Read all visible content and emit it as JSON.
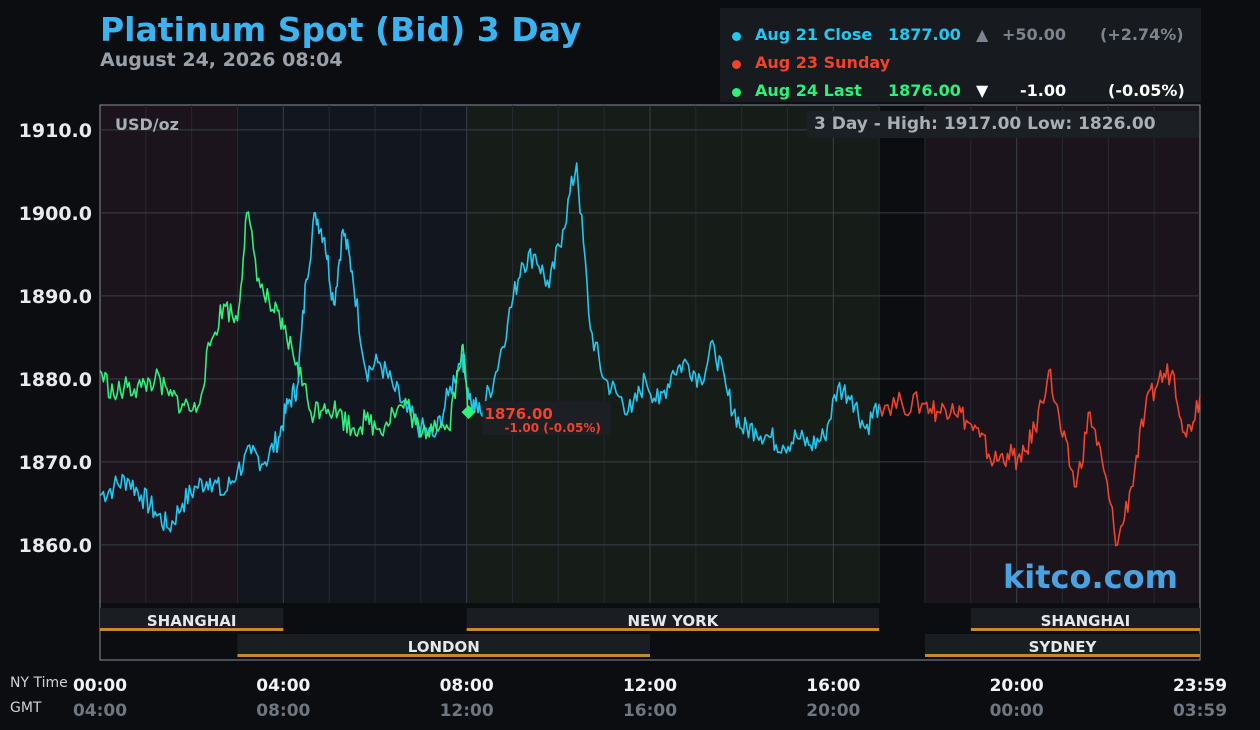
{
  "title": "Platinum Spot (Bid) 3 Day",
  "subtitle": "August 24, 2026 08:04",
  "legend": {
    "close": {
      "label": "Aug 21 Close",
      "price": "1877.00",
      "arrow": "▲",
      "change": "+50.00",
      "pct": "(+2.74%)",
      "color": "#22c8f0"
    },
    "sunday": {
      "label": "Aug 23 Sunday",
      "color": "#f0432c"
    },
    "last": {
      "label": "Aug 24 Last",
      "price": "1876.00",
      "arrow": "▼",
      "change": "-1.00",
      "pct": "(-0.05%)",
      "color": "#2ef07a"
    }
  },
  "unit_label": "USD/oz",
  "hilo": "3 Day - High: 1917.00  Low: 1826.00",
  "brand": "kitco.com",
  "current_marker": {
    "price": "1876.00",
    "change": "-1.00 (-0.05%)"
  },
  "axis": {
    "ny_label": "NY Time",
    "gmt_label": "GMT",
    "ny_ticks": [
      "00:00",
      "04:00",
      "08:00",
      "12:00",
      "16:00",
      "20:00",
      "23:59"
    ],
    "gmt_ticks": [
      "04:00",
      "08:00",
      "12:00",
      "16:00",
      "20:00",
      "00:00",
      "03:59"
    ]
  },
  "sessions": [
    {
      "name": "SHANGHAI",
      "row": 1,
      "start": 0,
      "end": 4
    },
    {
      "name": "NEW YORK",
      "row": 1,
      "start": 8,
      "end": 17
    },
    {
      "name": "SHANGHAI",
      "row": 1,
      "start": 19,
      "end": 24
    },
    {
      "name": "LONDON",
      "row": 2,
      "start": 3,
      "end": 12
    },
    {
      "name": "SYDNEY",
      "row": 2,
      "start": 18,
      "end": 24
    }
  ],
  "chart_data": {
    "type": "line",
    "title": "Platinum Spot (Bid) 3 Day",
    "xlabel": "NY Time / GMT",
    "ylabel": "USD/oz",
    "x_range_hours": [
      0,
      24
    ],
    "ylim": [
      1853,
      1913
    ],
    "y_ticks": [
      1860,
      1870,
      1880,
      1890,
      1900,
      1910
    ],
    "y_tick_labels": [
      "1860.0",
      "1870.0",
      "1880.0",
      "1890.0",
      "1900.0",
      "1910.0"
    ],
    "grid": true,
    "legend_position": "top-right",
    "series": [
      {
        "name": "Aug 21 Close",
        "color": "#22c8f0",
        "x": [
          0,
          0.3,
          0.6,
          0.9,
          1.2,
          1.5,
          1.8,
          2.1,
          2.4,
          2.7,
          3.0,
          3.3,
          3.6,
          3.9,
          4.1,
          4.3,
          4.5,
          4.7,
          4.9,
          5.1,
          5.3,
          5.5,
          5.8,
          6.1,
          6.4,
          6.7,
          7.0,
          7.3,
          7.6,
          7.9,
          8.1,
          8.3,
          8.6,
          8.9,
          9.2,
          9.5,
          9.8,
          10.1,
          10.4,
          10.7,
          11.0,
          11.3,
          11.6,
          11.9,
          12.2,
          12.5,
          12.8,
          13.1,
          13.4,
          13.7,
          14.0,
          14.3,
          14.6,
          14.9,
          15.2,
          15.5,
          15.8,
          16.1,
          16.4,
          16.7,
          17.0
        ],
        "y": [
          1866,
          1867,
          1868,
          1866,
          1864,
          1862,
          1865,
          1867,
          1868,
          1866,
          1869,
          1871,
          1870,
          1873,
          1877,
          1879,
          1892,
          1900,
          1897,
          1889,
          1898,
          1893,
          1881,
          1882,
          1879,
          1876,
          1874,
          1873,
          1878,
          1883,
          1877,
          1876,
          1880,
          1887,
          1894,
          1895,
          1891,
          1898,
          1906,
          1886,
          1880,
          1878,
          1876,
          1880,
          1877,
          1881,
          1882,
          1880,
          1884,
          1878,
          1874,
          1874,
          1873,
          1872,
          1873,
          1872,
          1873,
          1879,
          1878,
          1874,
          1877
        ]
      },
      {
        "name": "Aug 23 Sunday",
        "color": "#f0432c",
        "x": [
          17.0,
          17.5,
          18.0,
          18.3,
          18.6,
          18.9,
          19.2,
          19.5,
          19.8,
          20.1,
          20.4,
          20.7,
          21.0,
          21.3,
          21.6,
          21.9,
          22.2,
          22.5,
          22.8,
          23.1,
          23.4,
          23.7,
          24.0
        ],
        "y": [
          1877,
          1877,
          1877,
          1876,
          1877,
          1875,
          1873,
          1870,
          1871,
          1870,
          1874,
          1881,
          1873,
          1867,
          1876,
          1869,
          1860,
          1867,
          1876,
          1880,
          1881,
          1873,
          1878
        ]
      },
      {
        "name": "Aug 24 Last",
        "color": "#2ef07a",
        "x": [
          0,
          0.3,
          0.6,
          0.9,
          1.2,
          1.5,
          1.8,
          2.1,
          2.4,
          2.7,
          3.0,
          3.2,
          3.5,
          3.8,
          4.0,
          4.3,
          4.6,
          4.9,
          5.2,
          5.5,
          5.8,
          6.1,
          6.4,
          6.7,
          7.0,
          7.3,
          7.6,
          7.9,
          8.04
        ],
        "y": [
          1881,
          1878,
          1879,
          1879,
          1880,
          1878,
          1877,
          1876,
          1884,
          1889,
          1887,
          1900,
          1891,
          1888,
          1886,
          1882,
          1876,
          1877,
          1876,
          1874,
          1875,
          1874,
          1876,
          1877,
          1873,
          1875,
          1874,
          1884,
          1876
        ]
      }
    ]
  }
}
